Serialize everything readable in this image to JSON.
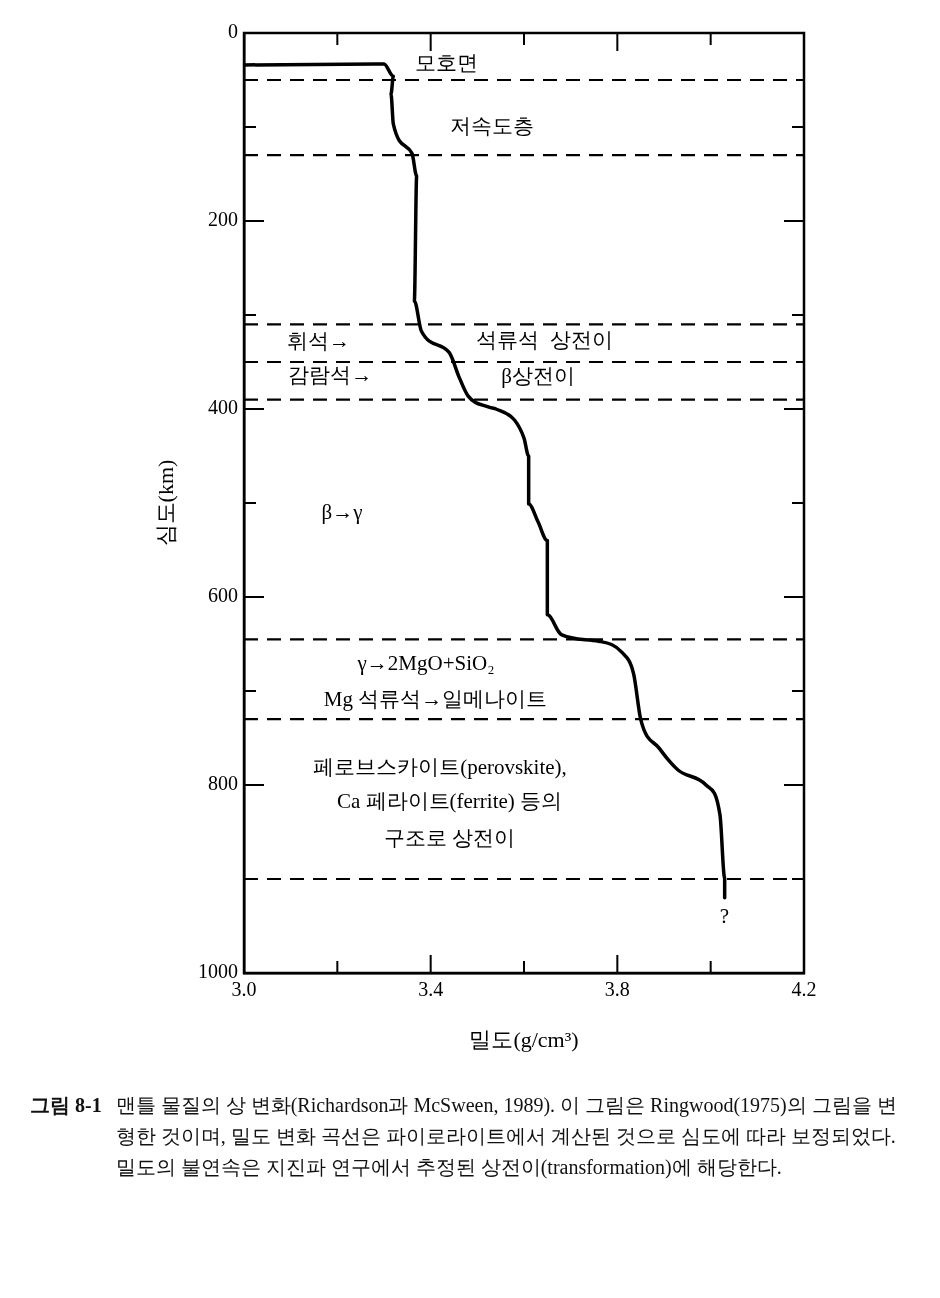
{
  "chart_data": {
    "type": "line",
    "xlabel": "밀도(g/cm³)",
    "ylabel": "심도(km)",
    "xlim": [
      3.0,
      4.2
    ],
    "ylim": [
      1000,
      0
    ],
    "xticks": [
      {
        "value": 3,
        "label": "3.0"
      },
      {
        "value": 3.2,
        "label": null
      },
      3.4,
      {
        "value": 3.6,
        "label": null
      },
      3.8,
      {
        "value": 4.0,
        "label": null
      },
      4.2
    ],
    "yticks": [
      0,
      {
        "value": 100,
        "label": null
      },
      200,
      {
        "value": 300,
        "label": null
      },
      400,
      {
        "value": 500,
        "label": null
      },
      600,
      {
        "value": 700,
        "label": null
      },
      800,
      {
        "value": 900,
        "label": null
      },
      1000
    ],
    "series": [
      {
        "color": "#000000",
        "x": [
          3.0,
          3.3,
          3.32,
          3.315,
          3.32,
          3.36,
          3.37,
          3.365,
          3.38,
          3.44,
          3.46,
          3.48,
          3.525,
          3.54,
          3.58,
          3.6,
          3.61,
          3.61,
          3.63,
          3.65,
          3.65,
          3.68,
          3.76,
          3.81,
          3.835,
          3.85,
          3.89,
          3.93,
          3.99,
          4.02,
          4.03,
          4.03
        ],
        "values": [
          34,
          33,
          46,
          65,
          97,
          128,
          152,
          285,
          317,
          340,
          365,
          386,
          398,
          400,
          412,
          431,
          450,
          501,
          520,
          540,
          619,
          640,
          647,
          659,
          682,
          730,
          761,
          784,
          800,
          832,
          899,
          920
        ]
      }
    ],
    "ref_lines": [
      {
        "axis": "y",
        "value": 50,
        "color": "#000000",
        "line_style": "dashed"
      },
      {
        "axis": "y",
        "value": 130,
        "color": "#000000",
        "line_style": "dashed"
      },
      {
        "axis": "y",
        "value": 310,
        "color": "#000000",
        "line_style": "dashed"
      },
      {
        "axis": "y",
        "value": 350,
        "color": "#000000",
        "line_style": "dashed"
      },
      {
        "axis": "y",
        "value": 390,
        "color": "#000000",
        "line_style": "dashed"
      },
      {
        "axis": "y",
        "value": 645,
        "color": "#000000",
        "line_style": "dashed"
      },
      {
        "axis": "y",
        "value": 730,
        "color": "#000000",
        "line_style": "dashed"
      },
      {
        "axis": "y",
        "value": 900,
        "color": "#000000",
        "line_style": "dashed"
      }
    ],
    "annotations": [
      "모호면",
      "저속도층",
      "휘석→",
      "감람석→",
      "석류석  상전이",
      "β상전이",
      "β→γ",
      "γ→2MgO+SiO₂",
      "Mg 석류석→일메나이트",
      "페로브스카이트(perovskite),",
      "Ca 페라이트(ferrite) 등의",
      "구조로 상전이",
      "?",
      "그림 8-1",
      "맨틀 물질의 상 변화(Richardson과 McSween, 1989). 이 그림은 Ringwood(1975)의 그림을 변형한 것이며, 밀도 변화 곡선은 파이로라이트에서 계산된 것으로 심도에 따라 보정되었다. 밀도의 불연속은 지진파 연구에서 추정된 상전이(transformation)에 해당한다."
    ],
    "legend": false,
    "grid": false,
    "marker": "none",
    "line_style": "solid"
  }
}
